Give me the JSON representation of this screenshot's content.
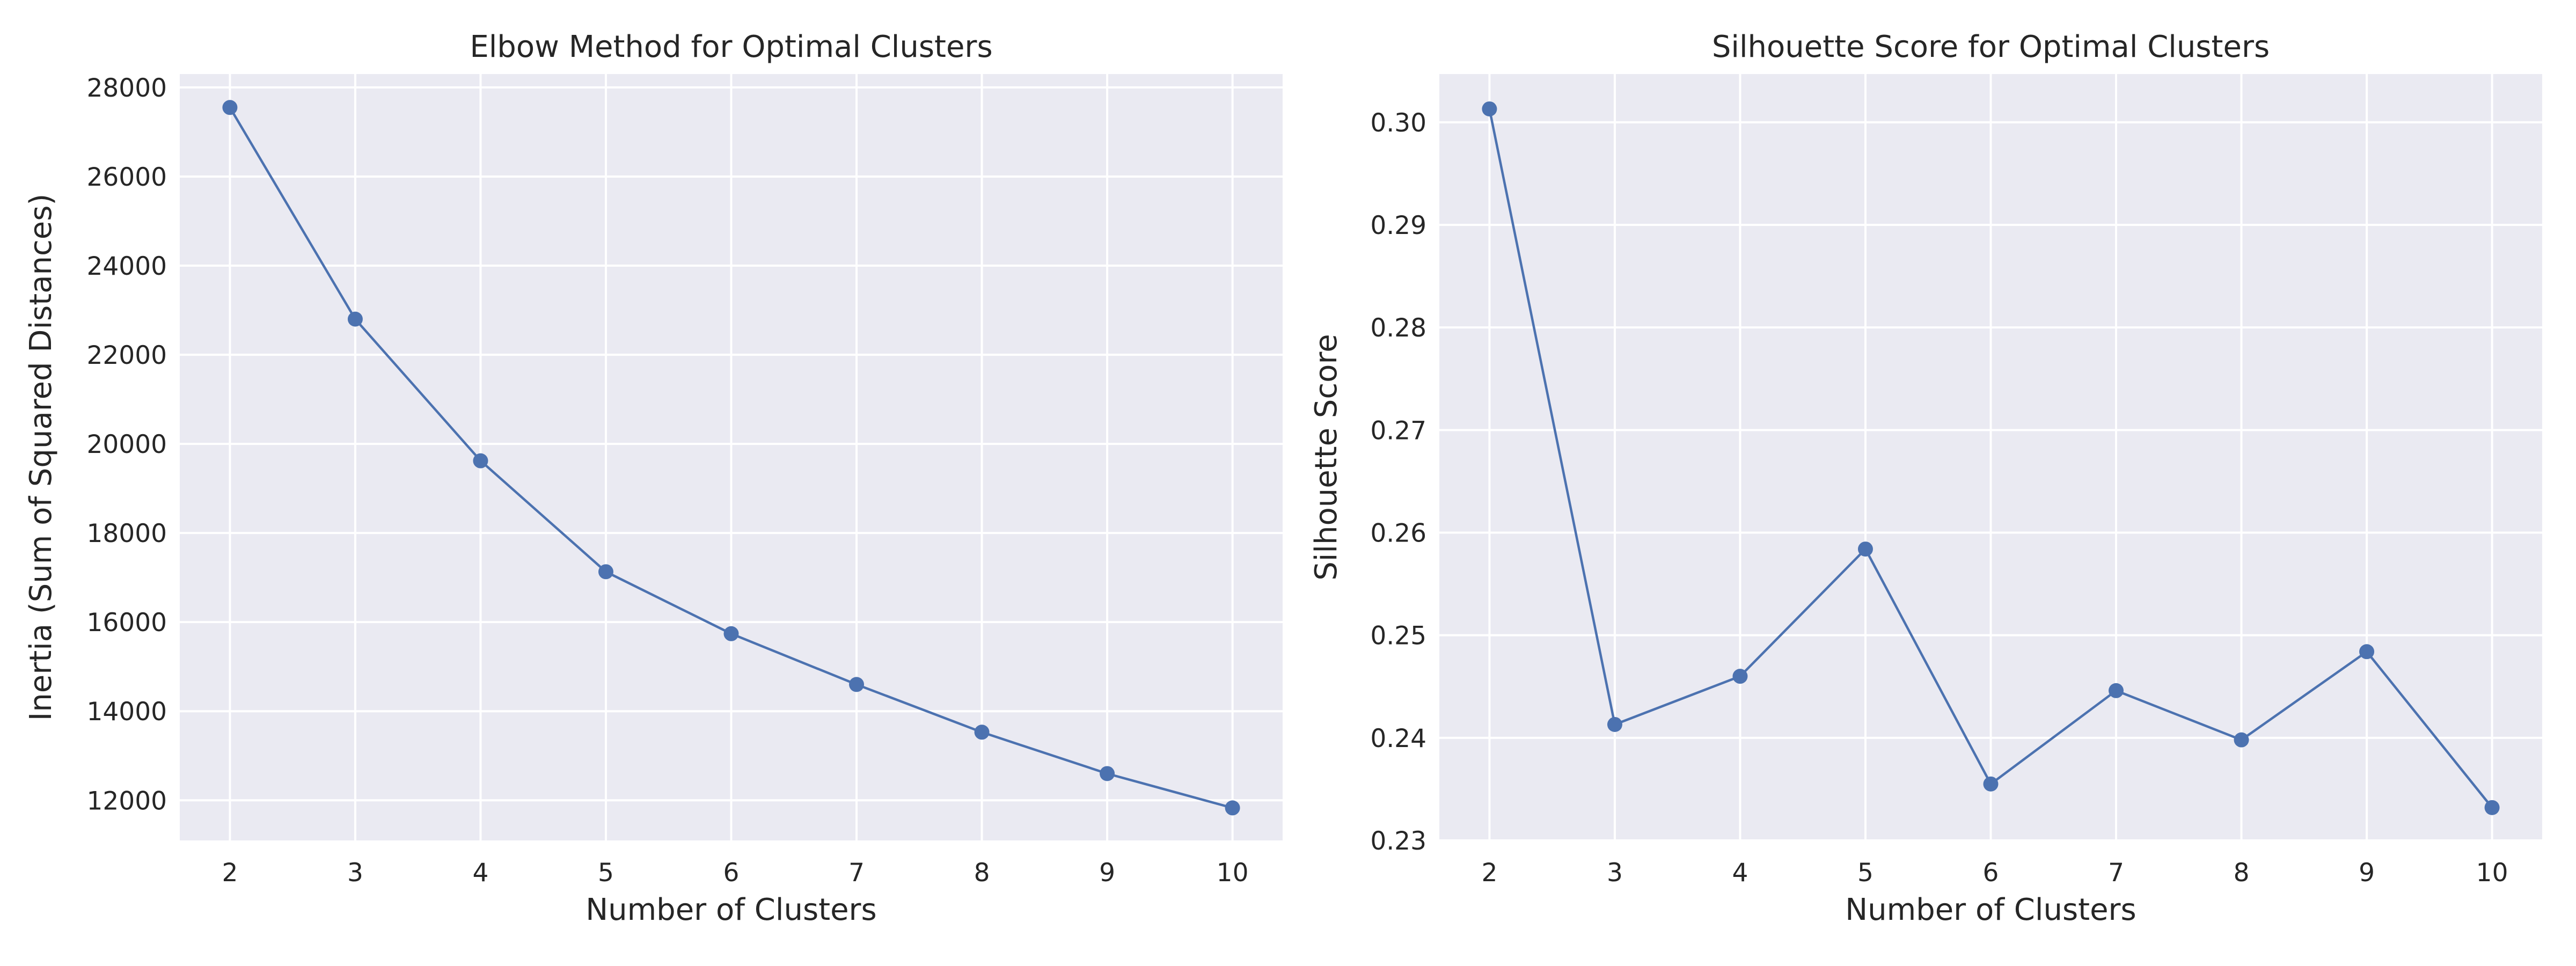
{
  "chart_data": [
    {
      "type": "line",
      "title": "Elbow Method for Optimal Clusters",
      "xlabel": "Number of Clusters",
      "ylabel": "Inertia (Sum of Squared Distances)",
      "x": [
        2,
        3,
        4,
        5,
        6,
        7,
        8,
        9,
        10
      ],
      "y": [
        27550,
        22800,
        19620,
        17130,
        15740,
        14600,
        13530,
        12600,
        11830
      ],
      "xlim": [
        1.6,
        10.4
      ],
      "ylim": [
        11100,
        28300
      ],
      "xticks": [
        2,
        3,
        4,
        5,
        6,
        7,
        8,
        9,
        10
      ],
      "yticks": [
        12000,
        14000,
        16000,
        18000,
        20000,
        22000,
        24000,
        26000,
        28000
      ],
      "grid": true,
      "marker": "circle",
      "colors": {
        "line": "#4C72B0",
        "background": "#EAEAF2",
        "grid": "#FFFFFF"
      }
    },
    {
      "type": "line",
      "title": "Silhouette Score for Optimal Clusters",
      "xlabel": "Number of Clusters",
      "ylabel": "Silhouette Score",
      "x": [
        2,
        3,
        4,
        5,
        6,
        7,
        8,
        9,
        10
      ],
      "y": [
        0.3013,
        0.2413,
        0.246,
        0.2584,
        0.2355,
        0.2446,
        0.2398,
        0.2484,
        0.2332
      ],
      "xlim": [
        1.6,
        10.4
      ],
      "ylim": [
        0.23,
        0.3047
      ],
      "xticks": [
        2,
        3,
        4,
        5,
        6,
        7,
        8,
        9,
        10
      ],
      "yticks": [
        0.23,
        0.24,
        0.25,
        0.26,
        0.27,
        0.28,
        0.29,
        0.3
      ],
      "ytick_labels": [
        "0.23",
        "0.24",
        "0.25",
        "0.26",
        "0.27",
        "0.28",
        "0.29",
        "0.30"
      ],
      "grid": true,
      "marker": "circle",
      "colors": {
        "line": "#4C72B0",
        "background": "#EAEAF2",
        "grid": "#FFFFFF"
      }
    }
  ]
}
